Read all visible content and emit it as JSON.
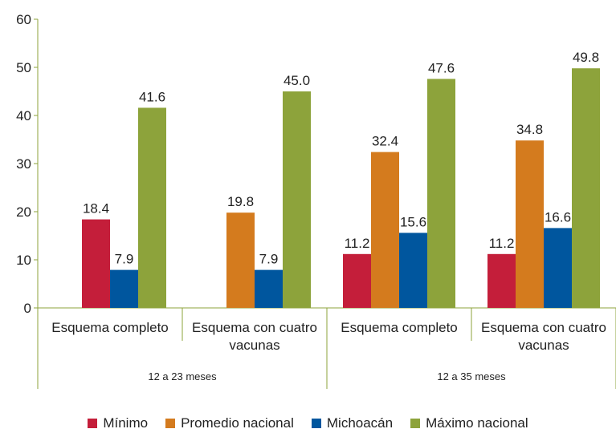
{
  "chart_data": {
    "type": "bar",
    "categories": [
      "Esquema completo",
      "Esquema con cuatro vacunas",
      "Esquema completo",
      "Esquema con cuatro vacunas"
    ],
    "groups": [
      "12 a 23 meses",
      "12 a 35 meses"
    ],
    "series": [
      {
        "name": "Mínimo",
        "color": "#c41e3a",
        "values": [
          18.4,
          null,
          11.2,
          11.2
        ]
      },
      {
        "name": "Promedio nacional",
        "color": "#d47b1e",
        "values": [
          null,
          19.8,
          32.4,
          34.8
        ]
      },
      {
        "name": "Michoacán",
        "color": "#00569e",
        "values": [
          7.9,
          7.9,
          15.6,
          16.6
        ]
      },
      {
        "name": "Máximo nacional",
        "color": "#8da33b",
        "values": [
          41.6,
          45.0,
          47.6,
          49.8
        ],
        "value_labels": [
          "41.6",
          "45.0",
          "47.6",
          "49.8"
        ]
      }
    ],
    "ylim": [
      0,
      60
    ],
    "yticks": [
      0,
      10,
      20,
      30,
      40,
      50,
      60
    ],
    "grid": false
  }
}
